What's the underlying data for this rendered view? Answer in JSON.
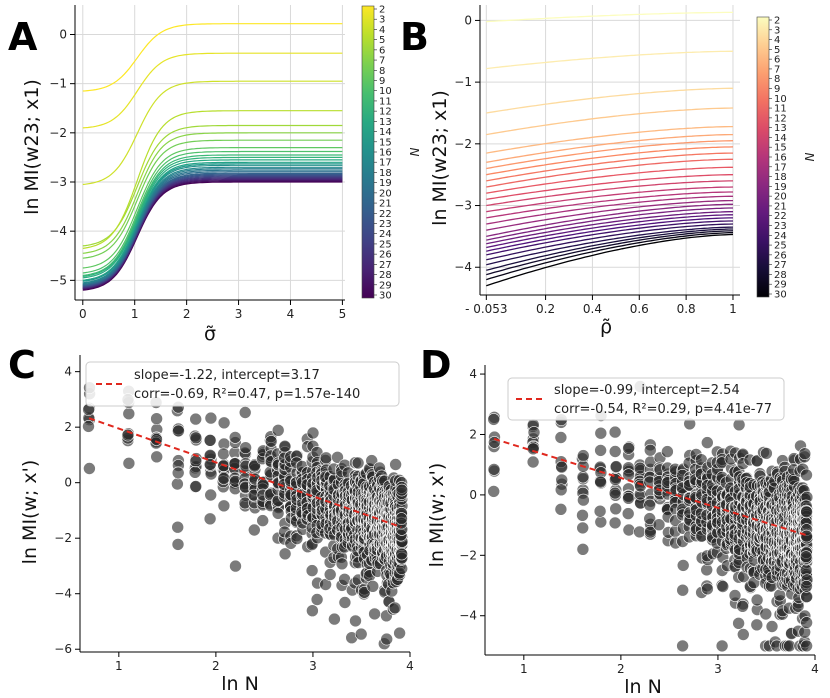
{
  "figure": {
    "panel_labels": [
      "A",
      "B",
      "C",
      "D"
    ],
    "colors": {
      "axis": "#000000",
      "grid": "#d9d9d9",
      "scatter": "#2a2a2a",
      "fit": "#e0281e"
    }
  },
  "chart_data": [
    {
      "id": "A",
      "type": "line",
      "xlabel": "σ̃",
      "ylabel": "ln MI(w23; x1)",
      "xlim": [
        -0.15,
        5.05
      ],
      "ylim": [
        -5.4,
        0.6
      ],
      "xticks": [
        0,
        1,
        2,
        3,
        4,
        5
      ],
      "yticks": [
        0,
        -1,
        -2,
        -3,
        -4,
        -5
      ],
      "grid": true,
      "colormap": "viridis",
      "colorbar_label": "N",
      "colorbar_ticks": [
        2,
        3,
        4,
        5,
        6,
        7,
        8,
        9,
        10,
        11,
        12,
        13,
        14,
        15,
        16,
        17,
        18,
        19,
        20,
        21,
        22,
        23,
        24,
        25,
        26,
        27,
        28,
        29,
        30
      ],
      "series_model": "sigmoid rise from start value at σ=0 to plateau near σ≈2",
      "series": [
        {
          "N": 2,
          "start": -1.15,
          "plateau": 0.22
        },
        {
          "N": 3,
          "start": -1.9,
          "plateau": -0.38
        },
        {
          "N": 4,
          "start": -3.05,
          "plateau": -0.95
        },
        {
          "N": 5,
          "start": -4.35,
          "plateau": -1.55
        },
        {
          "N": 6,
          "start": -4.3,
          "plateau": -1.85
        },
        {
          "N": 7,
          "start": -4.45,
          "plateau": -2.0
        },
        {
          "N": 8,
          "start": -4.55,
          "plateau": -2.15
        },
        {
          "N": 9,
          "start": -4.75,
          "plateau": -2.3
        },
        {
          "N": 10,
          "start": -4.85,
          "plateau": -2.38
        },
        {
          "N": 11,
          "start": -4.9,
          "plateau": -2.45
        },
        {
          "N": 12,
          "start": -4.92,
          "plateau": -2.5
        },
        {
          "N": 13,
          "start": -4.95,
          "plateau": -2.55
        },
        {
          "N": 14,
          "start": -5.0,
          "plateau": -2.6
        },
        {
          "N": 15,
          "start": -5.0,
          "plateau": -2.63
        },
        {
          "N": 16,
          "start": -5.02,
          "plateau": -2.66
        },
        {
          "N": 17,
          "start": -5.05,
          "plateau": -2.7
        },
        {
          "N": 18,
          "start": -5.06,
          "plateau": -2.73
        },
        {
          "N": 19,
          "start": -5.08,
          "plateau": -2.76
        },
        {
          "N": 20,
          "start": -5.09,
          "plateau": -2.79
        },
        {
          "N": 21,
          "start": -5.1,
          "plateau": -2.82
        },
        {
          "N": 22,
          "start": -5.11,
          "plateau": -2.84
        },
        {
          "N": 23,
          "start": -5.12,
          "plateau": -2.86
        },
        {
          "N": 24,
          "start": -5.13,
          "plateau": -2.88
        },
        {
          "N": 25,
          "start": -5.14,
          "plateau": -2.9
        },
        {
          "N": 26,
          "start": -5.15,
          "plateau": -2.92
        },
        {
          "N": 27,
          "start": -5.16,
          "plateau": -2.94
        },
        {
          "N": 28,
          "start": -5.17,
          "plateau": -2.96
        },
        {
          "N": 29,
          "start": -5.18,
          "plateau": -2.98
        },
        {
          "N": 30,
          "start": -5.2,
          "plateau": -3.0
        }
      ]
    },
    {
      "id": "B",
      "type": "line",
      "xlabel": "ρ̃",
      "ylabel": "ln MI(w23; x1)",
      "xlim": [
        -0.08,
        1.03
      ],
      "ylim": [
        -4.45,
        0.25
      ],
      "xticks": [
        -0.053,
        0.2,
        0.4,
        0.6,
        0.8,
        1
      ],
      "xticklabels": [
        "- 0.053",
        "0.2",
        "0.4",
        "0.6",
        "0.8",
        "1"
      ],
      "yticks": [
        0,
        -1,
        -2,
        -3,
        -4
      ],
      "grid": true,
      "colormap": "magma",
      "colorbar_label": "N",
      "colorbar_ticks": [
        2,
        3,
        4,
        5,
        6,
        7,
        8,
        9,
        10,
        11,
        12,
        13,
        14,
        15,
        16,
        17,
        18,
        19,
        20,
        21,
        22,
        23,
        24,
        25,
        26,
        27,
        28,
        29,
        30
      ],
      "series_model": "slowly increasing concave curve from start at ρ=-0.053 to end at ρ=1",
      "series": [
        {
          "N": 2,
          "start": -0.02,
          "end": 0.13
        },
        {
          "N": 3,
          "start": -0.78,
          "end": -0.5
        },
        {
          "N": 4,
          "start": -1.5,
          "end": -1.1
        },
        {
          "N": 5,
          "start": -1.85,
          "end": -1.42
        },
        {
          "N": 6,
          "start": -2.15,
          "end": -1.72
        },
        {
          "N": 7,
          "start": -2.3,
          "end": -1.85
        },
        {
          "N": 8,
          "start": -2.4,
          "end": -1.95
        },
        {
          "N": 9,
          "start": -2.5,
          "end": -2.05
        },
        {
          "N": 10,
          "start": -2.6,
          "end": -2.15
        },
        {
          "N": 11,
          "start": -2.7,
          "end": -2.25
        },
        {
          "N": 12,
          "start": -2.8,
          "end": -2.38
        },
        {
          "N": 13,
          "start": -2.9,
          "end": -2.5
        },
        {
          "N": 14,
          "start": -3.0,
          "end": -2.6
        },
        {
          "N": 15,
          "start": -3.1,
          "end": -2.7
        },
        {
          "N": 16,
          "start": -3.2,
          "end": -2.78
        },
        {
          "N": 17,
          "start": -3.3,
          "end": -2.85
        },
        {
          "N": 18,
          "start": -3.4,
          "end": -2.92
        },
        {
          "N": 19,
          "start": -3.5,
          "end": -2.98
        },
        {
          "N": 20,
          "start": -3.56,
          "end": -3.04
        },
        {
          "N": 21,
          "start": -3.62,
          "end": -3.1
        },
        {
          "N": 22,
          "start": -3.68,
          "end": -3.15
        },
        {
          "N": 23,
          "start": -3.74,
          "end": -3.2
        },
        {
          "N": 24,
          "start": -3.8,
          "end": -3.25
        },
        {
          "N": 25,
          "start": -3.88,
          "end": -3.3
        },
        {
          "N": 26,
          "start": -3.96,
          "end": -3.35
        },
        {
          "N": 27,
          "start": -4.05,
          "end": -3.38
        },
        {
          "N": 28,
          "start": -4.12,
          "end": -3.41
        },
        {
          "N": 29,
          "start": -4.2,
          "end": -3.44
        },
        {
          "N": 30,
          "start": -4.3,
          "end": -3.47
        }
      ]
    },
    {
      "id": "C",
      "type": "scatter",
      "xlabel": "ln N",
      "ylabel": "ln MI(w; x')",
      "xlim": [
        0.6,
        4.0
      ],
      "ylim": [
        -6.1,
        4.6
      ],
      "xticks": [
        1,
        2,
        3,
        4
      ],
      "yticks": [
        4,
        2,
        0,
        -2,
        -4,
        -6
      ],
      "grid": false,
      "legend": {
        "placement": "top-right",
        "line1": "slope=-1.22, intercept=3.17",
        "line2": "corr=-0.69, R²=0.47, p=1.57e-140"
      },
      "fit": {
        "slope": -1.22,
        "intercept": 3.17,
        "x_range": [
          0.693,
          3.91
        ]
      },
      "scatter_model": {
        "x_values": "ln N for N = 2..50",
        "spread_sd": 0.75,
        "outlier_tail": "downward",
        "count_per_x_grows_with_N": true
      }
    },
    {
      "id": "D",
      "type": "scatter",
      "xlabel": "ln N",
      "ylabel": "ln MI(w; x')",
      "xlim": [
        0.6,
        4.0
      ],
      "ylim": [
        -5.3,
        4.3
      ],
      "xticks": [
        1,
        2,
        3,
        4
      ],
      "yticks": [
        4,
        2,
        0,
        -2,
        -4
      ],
      "grid": false,
      "legend": {
        "placement": "top-right",
        "line1": "slope=-0.99, intercept=2.54",
        "line2": "corr=-0.54, R²=0.29, p=4.41e-77"
      },
      "fit": {
        "slope": -0.99,
        "intercept": 2.54,
        "x_range": [
          0.693,
          3.91
        ]
      },
      "scatter_model": {
        "x_values": "ln N for N = 2..50",
        "spread_sd": 0.85,
        "outlier_tail": "downward",
        "count_per_x_grows_with_N": true
      }
    }
  ]
}
